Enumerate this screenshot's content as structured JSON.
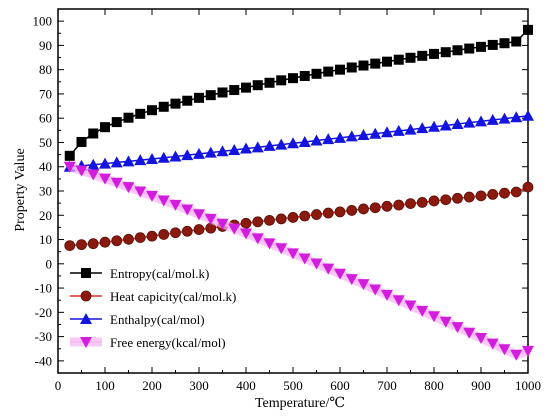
{
  "chart_data": {
    "type": "line",
    "title": "",
    "xlabel": "Temperature/℃",
    "ylabel": "Property Value",
    "xlim": [
      0,
      1000
    ],
    "ylim": [
      -45,
      105
    ],
    "xticks": [
      0,
      100,
      200,
      300,
      400,
      500,
      600,
      700,
      800,
      900,
      1000
    ],
    "yticks": [
      -40,
      -30,
      -20,
      -10,
      0,
      10,
      20,
      30,
      40,
      50,
      60,
      70,
      80,
      90,
      100
    ],
    "grid": false,
    "legend_position": "bottom-left",
    "x": [
      25,
      50,
      75,
      100,
      125,
      150,
      175,
      200,
      225,
      250,
      275,
      300,
      325,
      350,
      375,
      400,
      425,
      450,
      475,
      500,
      525,
      550,
      575,
      600,
      625,
      650,
      675,
      700,
      725,
      750,
      775,
      800,
      825,
      850,
      875,
      900,
      925,
      950,
      975,
      1000
    ],
    "series": [
      {
        "name": "Entropy(cal/mol.k)",
        "marker": "square",
        "color": "#000000",
        "line_color": "#000000",
        "values": [
          44.5,
          50.2,
          53.7,
          56.3,
          58.4,
          60.2,
          61.8,
          63.3,
          64.7,
          66.0,
          67.2,
          68.4,
          69.5,
          70.6,
          71.6,
          72.6,
          73.6,
          74.6,
          75.6,
          76.5,
          77.4,
          78.3,
          79.2,
          80.0,
          80.9,
          81.7,
          82.5,
          83.3,
          84.1,
          84.9,
          85.7,
          86.5,
          87.2,
          88.0,
          88.7,
          89.4,
          90.2,
          90.9,
          91.6,
          96.4
        ]
      },
      {
        "name": "Heat capicity(cal/mol.k)",
        "marker": "circle",
        "color": "#8b1a0e",
        "line_color": "#e8282a",
        "values": [
          7.5,
          7.9,
          8.3,
          8.9,
          9.5,
          10.1,
          10.8,
          11.4,
          12.1,
          12.8,
          13.4,
          14.1,
          14.7,
          15.4,
          16.0,
          16.7,
          17.3,
          17.9,
          18.5,
          19.1,
          19.7,
          20.3,
          20.9,
          21.4,
          22.0,
          22.6,
          23.1,
          23.7,
          24.2,
          24.8,
          25.3,
          25.9,
          26.4,
          27.0,
          27.5,
          28.0,
          28.6,
          29.1,
          29.6,
          31.6
        ]
      },
      {
        "name": "Enthalpy(cal/mol)",
        "marker": "triangle-up",
        "color": "#1414e0",
        "line_color": "#1414e0",
        "values": [
          40.0,
          40.4,
          40.8,
          41.3,
          41.8,
          42.2,
          42.7,
          43.2,
          43.7,
          44.2,
          44.8,
          45.3,
          45.8,
          46.4,
          46.9,
          47.5,
          48.0,
          48.6,
          49.1,
          49.7,
          50.2,
          50.8,
          51.4,
          51.9,
          52.5,
          53.1,
          53.6,
          54.2,
          54.8,
          55.3,
          55.9,
          56.5,
          57.0,
          57.6,
          58.2,
          58.7,
          59.3,
          59.8,
          60.4,
          61.0
        ]
      },
      {
        "name": "Free energy(kcal/mol)",
        "marker": "triangle-down",
        "color": "#d21edc",
        "line_color": "#f6b4f4",
        "values": [
          40.0,
          38.4,
          36.8,
          35.1,
          33.4,
          31.6,
          29.8,
          28.0,
          26.1,
          24.3,
          22.4,
          20.4,
          18.5,
          16.5,
          14.5,
          12.5,
          10.5,
          8.4,
          6.4,
          4.3,
          2.2,
          0.1,
          -2.0,
          -4.1,
          -6.3,
          -8.4,
          -10.6,
          -12.8,
          -15.0,
          -17.2,
          -19.4,
          -21.6,
          -23.9,
          -26.1,
          -28.4,
          -30.6,
          -32.9,
          -35.2,
          -37.5,
          -35.9
        ]
      }
    ]
  }
}
